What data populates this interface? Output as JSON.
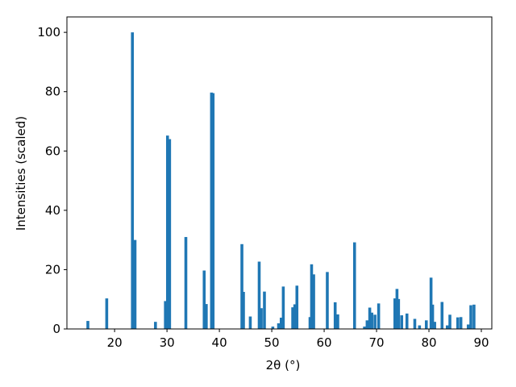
{
  "chart_data": {
    "type": "bar",
    "x_label": "2θ (°)",
    "y_label": "Intensities (scaled)",
    "color": "#1f77b4",
    "bar_width": 0.55,
    "x": [
      14.9,
      18.5,
      23.4,
      23.9,
      27.8,
      29.7,
      30.1,
      30.5,
      33.6,
      37.1,
      37.5,
      38.5,
      38.8,
      44.3,
      44.6,
      45.9,
      47.6,
      48.0,
      48.6,
      50.2,
      51.3,
      51.8,
      52.2,
      54.0,
      54.4,
      54.8,
      57.3,
      57.6,
      58.0,
      60.6,
      62.1,
      62.6,
      65.8,
      67.7,
      68.2,
      68.7,
      69.1,
      69.7,
      70.4,
      73.5,
      73.9,
      74.2,
      74.8,
      75.8,
      77.3,
      78.2,
      79.5,
      80.4,
      80.7,
      81.1,
      82.5,
      83.5,
      84.0,
      85.5,
      86.1,
      87.5,
      88.0,
      88.6
    ],
    "values": [
      2.7,
      10.3,
      100,
      30,
      2.4,
      9.4,
      65.2,
      64,
      31,
      19.7,
      8.4,
      79.7,
      79.5,
      28.6,
      12.5,
      4.2,
      22.7,
      7,
      12.6,
      0.8,
      1.9,
      3.8,
      14.3,
      7.3,
      8.3,
      14.6,
      4,
      21.8,
      18.4,
      19.2,
      9,
      4.9,
      29.2,
      0.8,
      2.9,
      7.2,
      5.5,
      4.8,
      8.6,
      10.3,
      13.5,
      10.1,
      4.6,
      5.2,
      3.4,
      1.2,
      2.9,
      17.3,
      8.2,
      2.4,
      9.1,
      1.2,
      4.8,
      3.9,
      4,
      1.5,
      8,
      8.2
    ],
    "xlim": [
      10.9,
      92.0
    ],
    "ylim": [
      0,
      105.2
    ],
    "xticks": [
      20,
      30,
      40,
      50,
      60,
      70,
      80,
      90
    ],
    "yticks": [
      0,
      20,
      40,
      60,
      80,
      100
    ]
  }
}
